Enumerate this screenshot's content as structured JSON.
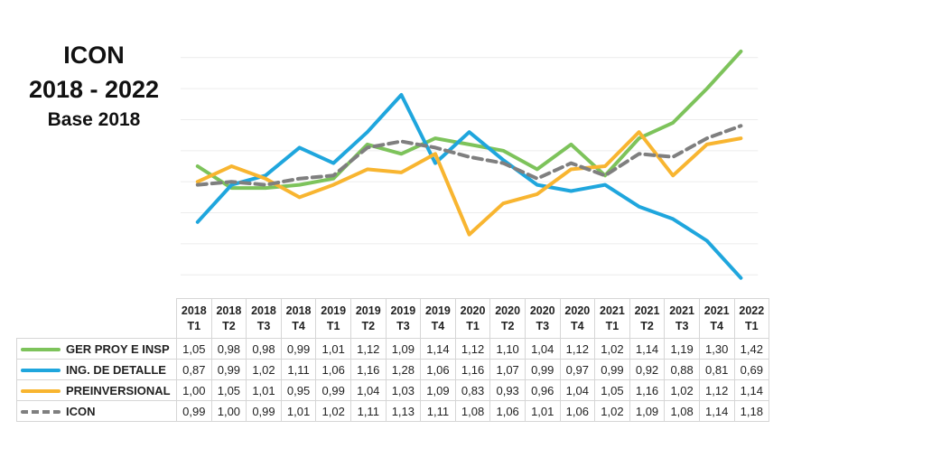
{
  "title": {
    "line1": "ICON",
    "line2": "2018 - 2022",
    "line3": "Base 2018"
  },
  "chart_data": {
    "type": "line",
    "categories": [
      {
        "year": "2018",
        "quarter": "T1"
      },
      {
        "year": "2018",
        "quarter": "T2"
      },
      {
        "year": "2018",
        "quarter": "T3"
      },
      {
        "year": "2018",
        "quarter": "T4"
      },
      {
        "year": "2019",
        "quarter": "T1"
      },
      {
        "year": "2019",
        "quarter": "T2"
      },
      {
        "year": "2019",
        "quarter": "T3"
      },
      {
        "year": "2019",
        "quarter": "T4"
      },
      {
        "year": "2020",
        "quarter": "T1"
      },
      {
        "year": "2020",
        "quarter": "T2"
      },
      {
        "year": "2020",
        "quarter": "T3"
      },
      {
        "year": "2020",
        "quarter": "T4"
      },
      {
        "year": "2021",
        "quarter": "T1"
      },
      {
        "year": "2021",
        "quarter": "T2"
      },
      {
        "year": "2021",
        "quarter": "T3"
      },
      {
        "year": "2021",
        "quarter": "T4"
      },
      {
        "year": "2022",
        "quarter": "T1"
      }
    ],
    "series": [
      {
        "name": "GER PROY E INSP",
        "color": "#7dc35b",
        "dashed": false,
        "values": [
          1.05,
          0.98,
          0.98,
          0.99,
          1.01,
          1.12,
          1.09,
          1.14,
          1.12,
          1.1,
          1.04,
          1.12,
          1.02,
          1.14,
          1.19,
          1.3,
          1.42
        ],
        "labels": [
          "1,05",
          "0,98",
          "0,98",
          "0,99",
          "1,01",
          "1,12",
          "1,09",
          "1,14",
          "1,12",
          "1,10",
          "1,04",
          "1,12",
          "1,02",
          "1,14",
          "1,19",
          "1,30",
          "1,42"
        ]
      },
      {
        "name": "ING. DE DETALLE",
        "color": "#1fa6dd",
        "dashed": false,
        "values": [
          0.87,
          0.99,
          1.02,
          1.11,
          1.06,
          1.16,
          1.28,
          1.06,
          1.16,
          1.07,
          0.99,
          0.97,
          0.99,
          0.92,
          0.88,
          0.81,
          0.69
        ],
        "labels": [
          "0,87",
          "0,99",
          "1,02",
          "1,11",
          "1,06",
          "1,16",
          "1,28",
          "1,06",
          "1,16",
          "1,07",
          "0,99",
          "0,97",
          "0,99",
          "0,92",
          "0,88",
          "0,81",
          "0,69"
        ]
      },
      {
        "name": "PREINVERSIONAL",
        "color": "#f8b530",
        "dashed": false,
        "values": [
          1.0,
          1.05,
          1.01,
          0.95,
          0.99,
          1.04,
          1.03,
          1.09,
          0.83,
          0.93,
          0.96,
          1.04,
          1.05,
          1.16,
          1.02,
          1.12,
          1.14
        ],
        "labels": [
          "1,00",
          "1,05",
          "1,01",
          "0,95",
          "0,99",
          "1,04",
          "1,03",
          "1,09",
          "0,83",
          "0,93",
          "0,96",
          "1,04",
          "1,05",
          "1,16",
          "1,02",
          "1,12",
          "1,14"
        ]
      },
      {
        "name": "ICON",
        "color": "#7f7f7f",
        "dashed": true,
        "values": [
          0.99,
          1.0,
          0.99,
          1.01,
          1.02,
          1.11,
          1.13,
          1.11,
          1.08,
          1.06,
          1.01,
          1.06,
          1.02,
          1.09,
          1.08,
          1.14,
          1.18
        ],
        "labels": [
          "0,99",
          "1,00",
          "0,99",
          "1,01",
          "1,02",
          "1,11",
          "1,13",
          "1,11",
          "1,08",
          "1,06",
          "1,01",
          "1,06",
          "1,02",
          "1,09",
          "1,08",
          "1,14",
          "1,18"
        ]
      }
    ],
    "ylim": [
      0.66,
      1.44
    ],
    "y_gridlines": [
      0.7,
      0.8,
      0.9,
      1.0,
      1.1,
      1.2,
      1.3,
      1.4
    ],
    "grid": true,
    "legend": "table-below"
  }
}
